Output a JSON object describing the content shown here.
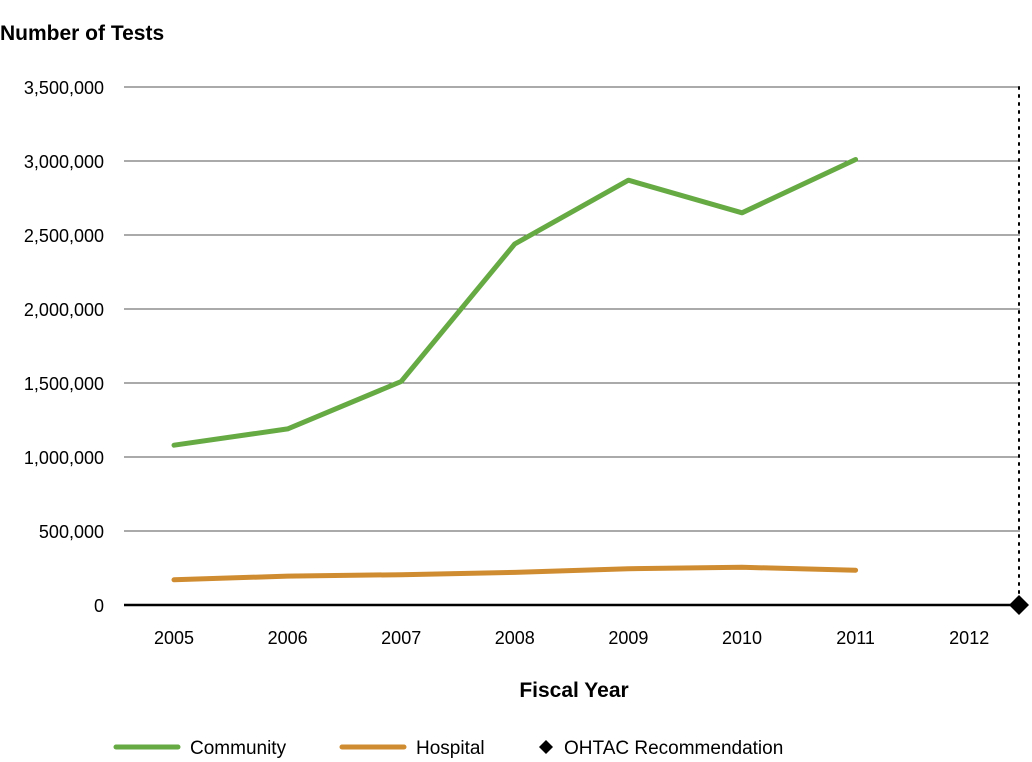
{
  "chart_data": {
    "type": "line",
    "ylabel": "Number of Tests",
    "xlabel": "Fiscal Year",
    "categories": [
      "2005",
      "2006",
      "2007",
      "2008",
      "2009",
      "2010",
      "2011",
      "2012"
    ],
    "ylim": [
      0,
      3500000
    ],
    "yticks": [
      0,
      500000,
      1000000,
      1500000,
      2000000,
      2500000,
      3000000,
      3500000
    ],
    "ytick_labels": [
      "0",
      "500,000",
      "1,000,000",
      "1,500,000",
      "2,000,000",
      "2,500,000",
      "3,000,000",
      "3,500,000"
    ],
    "grid": true,
    "legend_position": "bottom",
    "series": [
      {
        "name": "Community",
        "color": "#66aa44",
        "values": [
          1080000,
          1190000,
          1510000,
          2440000,
          2870000,
          2650000,
          3010000,
          null
        ]
      },
      {
        "name": "Hospital",
        "color": "#d08c30",
        "values": [
          170000,
          195000,
          205000,
          220000,
          245000,
          255000,
          235000,
          null
        ]
      }
    ],
    "annotation": {
      "name": "OHTAC Recommendation",
      "marker": "diamond",
      "color": "#000000",
      "position": "after-2012"
    }
  }
}
